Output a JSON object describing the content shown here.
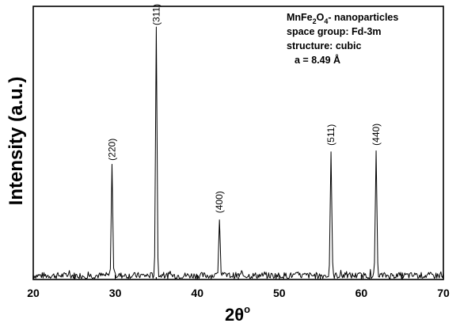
{
  "chart_data": {
    "type": "line",
    "title": "",
    "xlabel": "2θ",
    "xlabel_superscript": "o",
    "ylabel": "Intensity (a.u.)",
    "xlim": [
      20,
      70
    ],
    "ylim": [
      0,
      100
    ],
    "xticks": [
      20,
      30,
      40,
      50,
      60,
      70
    ],
    "yticks_shown": false,
    "grid": false,
    "baseline_level": 2,
    "series": [
      {
        "peaks": [
          {
            "x": 29.6,
            "y": 46,
            "label": "(220)"
          },
          {
            "x": 35.0,
            "y": 100,
            "label": "(311)"
          },
          {
            "x": 42.7,
            "y": 25,
            "label": "(400)"
          },
          {
            "x": 56.3,
            "y": 52,
            "label": "(511)"
          },
          {
            "x": 61.8,
            "y": 52,
            "label": "(440)"
          }
        ]
      }
    ],
    "annotation": {
      "line1_prefix": "MnFe",
      "line1_sub1": "2",
      "line1_mid": "O",
      "line1_sub2": "4",
      "line1_suffix": "- nanoparticles",
      "line2": "space group: Fd-3m",
      "line3": "structure: cubic",
      "line4": "a = 8.49 Å"
    }
  }
}
